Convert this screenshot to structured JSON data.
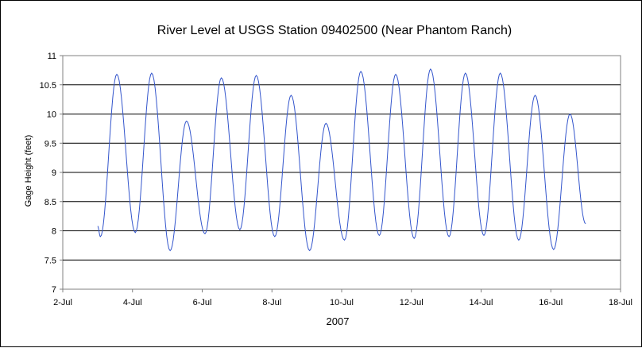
{
  "chart_data": {
    "type": "line",
    "title": "River Level at USGS Station 09402500 (Near Phantom Ranch)",
    "xlabel": "2007",
    "ylabel": "Gage Height (feet)",
    "x_ticks": [
      "2-Jul",
      "4-Jul",
      "6-Jul",
      "8-Jul",
      "10-Jul",
      "12-Jul",
      "14-Jul",
      "16-Jul",
      "18-Jul"
    ],
    "xlim": [
      "2007-07-02",
      "2007-07-18"
    ],
    "y_ticks": [
      "7",
      "7.5",
      "8",
      "8.5",
      "9",
      "9.5",
      "10",
      "10.5",
      "11"
    ],
    "ylim": [
      7,
      11
    ],
    "grid": "horizontal",
    "legend": "none",
    "series": [
      {
        "color": "#3355cc",
        "start": "2007-07-03T00:00",
        "end": "2007-07-17T00:00",
        "cycles": [
          {
            "peak": 10.68,
            "trough": 7.9
          },
          {
            "peak": 10.7,
            "trough": 7.97
          },
          {
            "peak": 9.88,
            "trough": 7.66
          },
          {
            "peak": 10.62,
            "trough": 7.95
          },
          {
            "peak": 10.66,
            "trough": 8.02
          },
          {
            "peak": 10.32,
            "trough": 7.9
          },
          {
            "peak": 9.84,
            "trough": 7.66
          },
          {
            "peak": 10.73,
            "trough": 7.84
          },
          {
            "peak": 10.68,
            "trough": 7.92
          },
          {
            "peak": 10.77,
            "trough": 7.87
          },
          {
            "peak": 10.7,
            "trough": 7.9
          },
          {
            "peak": 10.7,
            "trough": 7.92
          },
          {
            "peak": 10.32,
            "trough": 7.84
          },
          {
            "peak": 10.0,
            "trough": 7.68
          }
        ],
        "start_value": 8.08,
        "end_value": 8.12
      }
    ]
  }
}
